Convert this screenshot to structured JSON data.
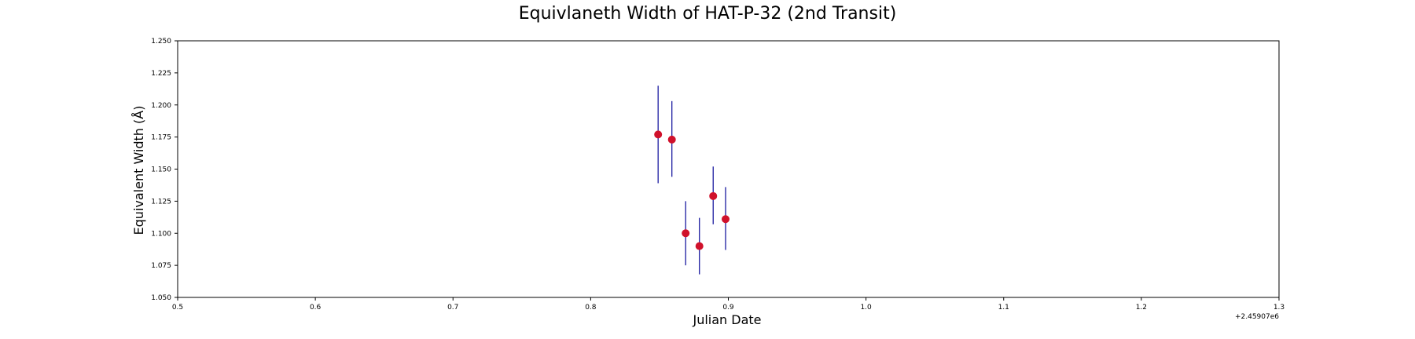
{
  "chart_data": {
    "type": "scatter",
    "title": "Equivlaneth Width of HAT-P-32 (2nd Transit)",
    "xlabel": "Julian Date",
    "ylabel": "Equivalent Width (Å)",
    "x_offset_label": "+2.45907e6",
    "xlim": [
      0.5,
      1.3
    ],
    "ylim": [
      1.05,
      1.25
    ],
    "x_ticks": [
      0.5,
      0.6,
      0.7,
      0.8,
      0.9,
      1.0,
      1.1,
      1.2,
      1.3
    ],
    "x_tick_labels": [
      "0.5",
      "0.6",
      "0.7",
      "0.8",
      "0.9",
      "1.0",
      "1.1",
      "1.2",
      "1.3"
    ],
    "y_ticks": [
      1.05,
      1.075,
      1.1,
      1.125,
      1.15,
      1.175,
      1.2,
      1.225,
      1.25
    ],
    "y_tick_labels": [
      "1.050",
      "1.075",
      "1.100",
      "1.125",
      "1.150",
      "1.175",
      "1.200",
      "1.225",
      "1.250"
    ],
    "grid": false,
    "marker_color": "#d0112b",
    "errorbar_color": "#1a1aa0",
    "points": [
      {
        "x": 0.849,
        "y": 1.177,
        "yerr_low": 1.139,
        "yerr_high": 1.215
      },
      {
        "x": 0.859,
        "y": 1.173,
        "yerr_low": 1.144,
        "yerr_high": 1.203
      },
      {
        "x": 0.869,
        "y": 1.1,
        "yerr_low": 1.075,
        "yerr_high": 1.125
      },
      {
        "x": 0.879,
        "y": 1.09,
        "yerr_low": 1.068,
        "yerr_high": 1.112
      },
      {
        "x": 0.889,
        "y": 1.129,
        "yerr_low": 1.107,
        "yerr_high": 1.152
      },
      {
        "x": 0.898,
        "y": 1.111,
        "yerr_low": 1.087,
        "yerr_high": 1.136
      }
    ]
  }
}
